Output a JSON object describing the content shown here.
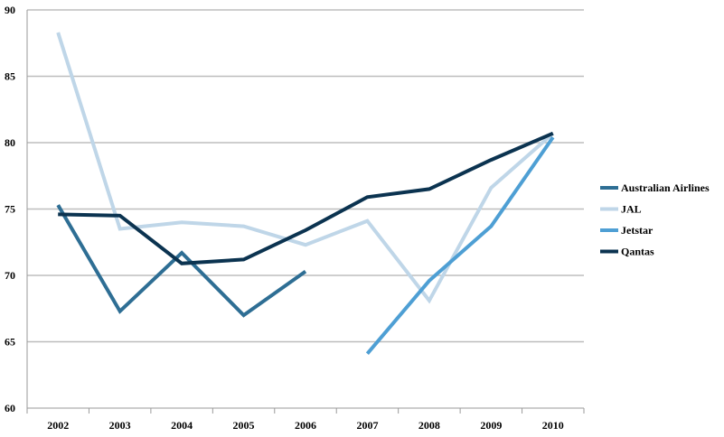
{
  "chart_data": {
    "type": "line",
    "title": "",
    "xlabel": "",
    "ylabel": "",
    "categories": [
      "2002",
      "2003",
      "2004",
      "2005",
      "2006",
      "2007",
      "2008",
      "2009",
      "2010"
    ],
    "ylim": [
      60,
      90
    ],
    "yticks": [
      60,
      65,
      70,
      75,
      80,
      85,
      90
    ],
    "grid": true,
    "legend_position": "right",
    "series": [
      {
        "name": "Australian Airlines",
        "color": "#2e6e94",
        "values": [
          75.3,
          67.3,
          71.7,
          67.0,
          70.3,
          null,
          null,
          null,
          null
        ]
      },
      {
        "name": "JAL",
        "color": "#bfd6e8",
        "values": [
          88.3,
          73.5,
          74.0,
          73.7,
          72.3,
          74.1,
          68.1,
          76.6,
          80.7
        ]
      },
      {
        "name": "Jetstar",
        "color": "#4e9fd4",
        "values": [
          null,
          null,
          null,
          null,
          null,
          64.1,
          69.6,
          73.7,
          80.4
        ]
      },
      {
        "name": "Qantas",
        "color": "#0b3350",
        "values": [
          74.6,
          74.5,
          70.9,
          71.2,
          73.4,
          75.9,
          76.5,
          78.7,
          80.7
        ]
      }
    ]
  }
}
